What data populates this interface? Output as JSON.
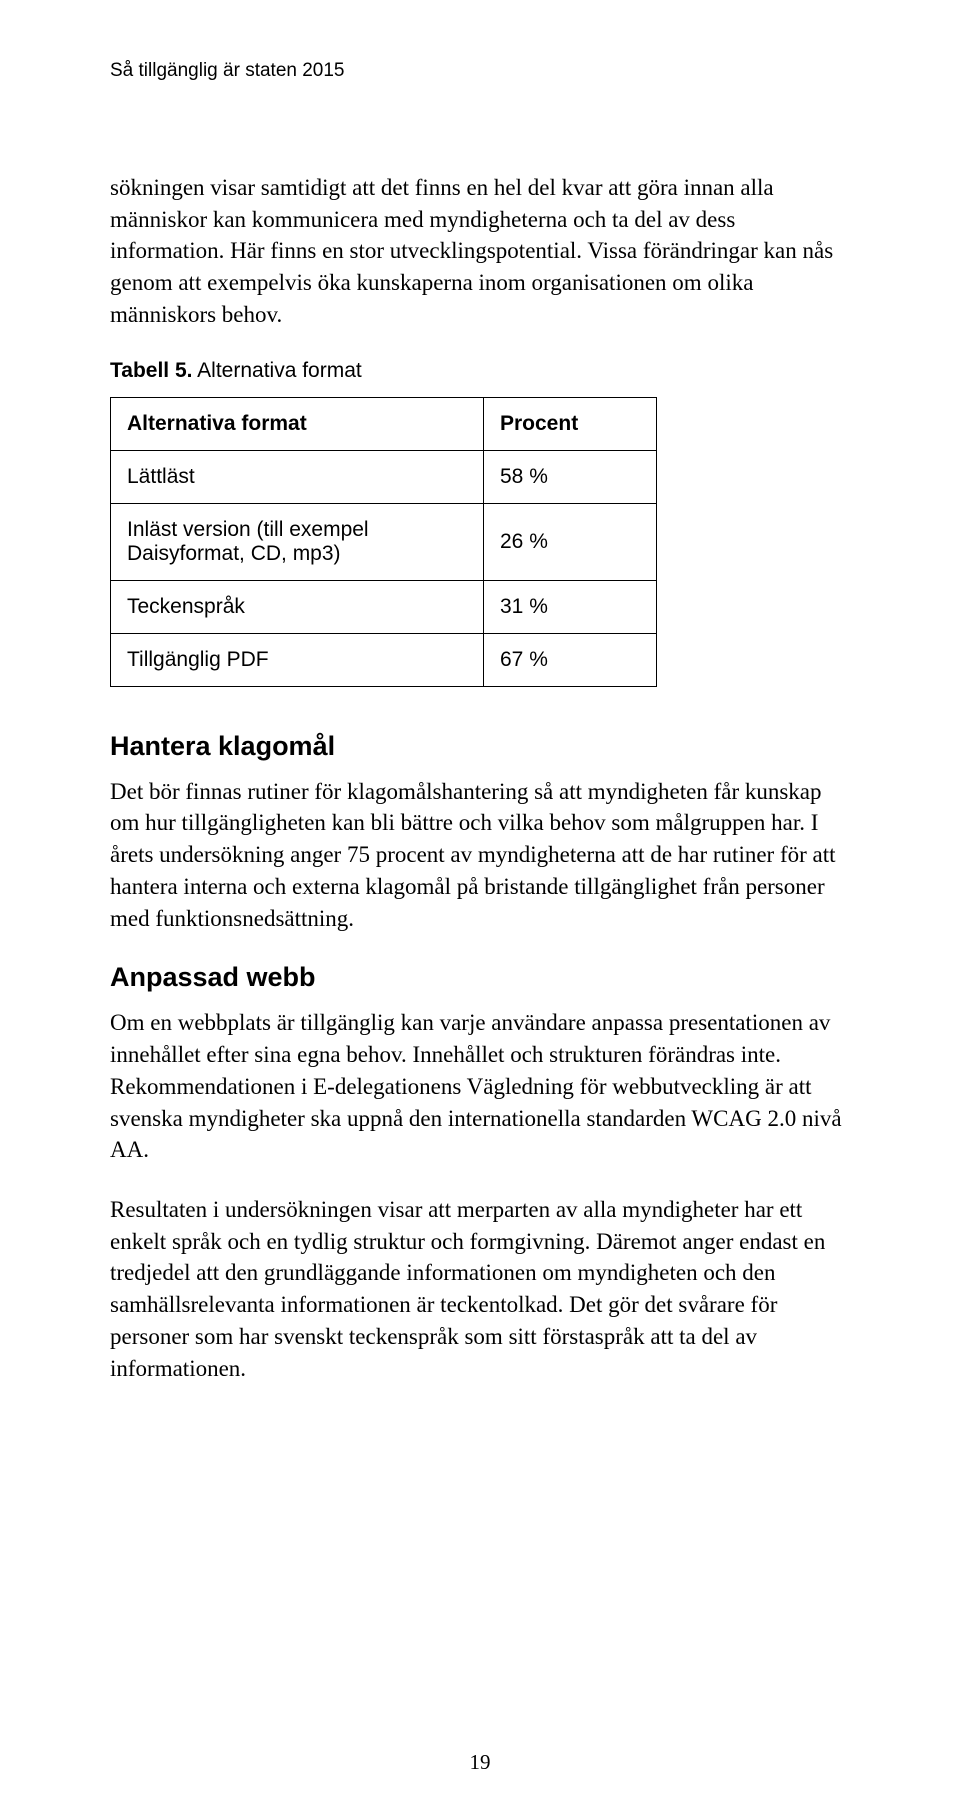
{
  "running_header": "Så tillgänglig är staten 2015",
  "intro_para": "sökningen visar samtidigt att det finns en hel del kvar att göra innan alla människor kan kommunicera med myndigheterna och ta del av dess information. Här finns en stor utvecklingspotential. Vissa förändringar kan nås genom att exempelvis öka kunskaperna inom organisationen om olika människors behov.",
  "table": {
    "caption_bold": "Tabell 5.",
    "caption_rest": " Alternativa format",
    "header_label": "Alternativa format",
    "header_value": "Procent",
    "rows": [
      {
        "label": "Lättläst",
        "value": "58 %"
      },
      {
        "label": "Inläst version (till exempel Daisyformat, CD, mp3)",
        "value": "26 %"
      },
      {
        "label": "Teckenspråk",
        "value": "31 %"
      },
      {
        "label": "Tillgänglig PDF",
        "value": "67 %"
      }
    ]
  },
  "section1": {
    "heading": "Hantera klagomål",
    "para": "Det bör finnas rutiner för klagomålshantering så att myndigheten får kunskap om hur tillgängligheten kan bli bättre och vilka behov som målgruppen har. I årets undersökning anger 75 procent av myndig­heterna att de har rutiner för att hantera interna och externa klagomål på bristande tillgänglighet från personer med funktionsnedsättning."
  },
  "section2": {
    "heading": "Anpassad webb",
    "para1": "Om en webbplats är tillgänglig kan varje användare anpassa presentationen av innehållet efter sina egna behov. Innehållet och strukturen förändras inte. Rekommendationen i E-delegationens Vägledning för webbutveckling är att svenska myndigheter ska uppnå den internationella standarden WCAG 2.0 nivå AA.",
    "para2": "Resultaten i undersökningen visar att merparten av alla myndigheter har ett enkelt språk och en tydlig struktur och formgivning. Däremot anger endast en tredjedel att den grundläggande informationen om myndigheten och den samhällsrelevanta informationen är tecken­tolkad. Det gör det svårare för personer som har svenskt teckenspråk som sitt förstaspråk att ta del av informationen."
  },
  "page_number": "19"
}
